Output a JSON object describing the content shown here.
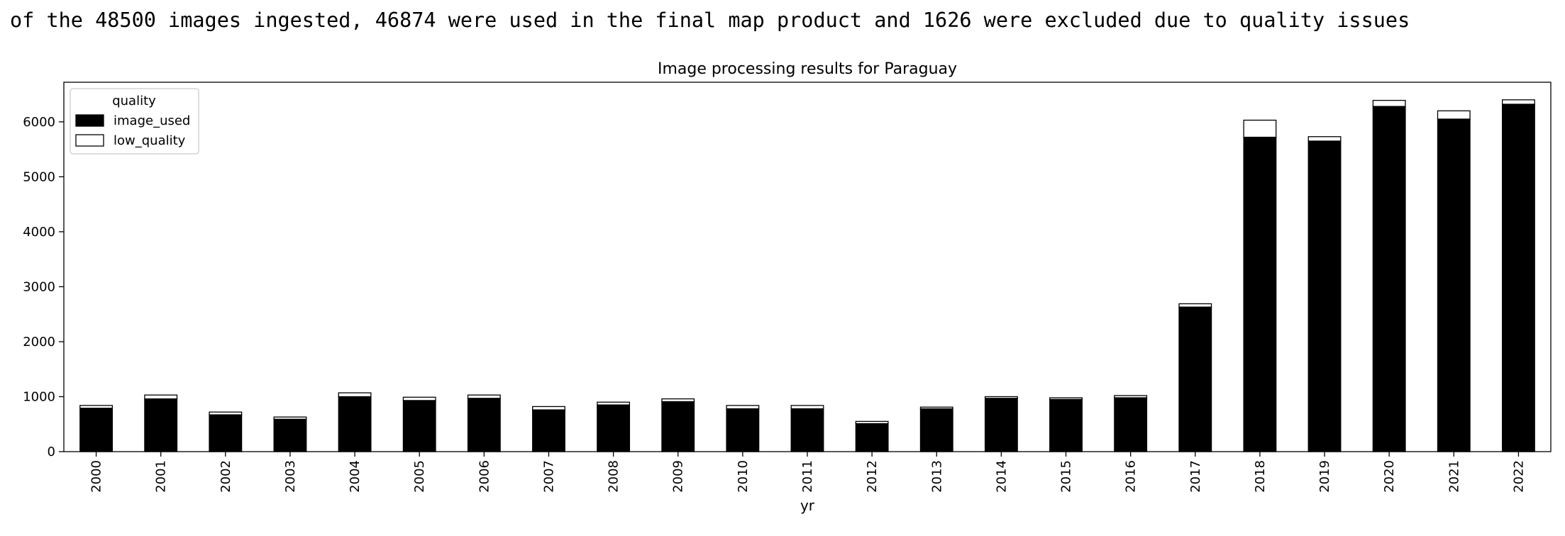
{
  "summary": "of the 48500 images ingested, 46874 were used in the final map product and 1626 were excluded due to quality issues",
  "chart_data": {
    "type": "bar",
    "stacked": true,
    "title": "Image processing results for Paraguay",
    "xlabel": "yr",
    "ylabel": "",
    "categories": [
      "2000",
      "2001",
      "2002",
      "2003",
      "2004",
      "2005",
      "2006",
      "2007",
      "2008",
      "2009",
      "2010",
      "2011",
      "2012",
      "2013",
      "2014",
      "2015",
      "2016",
      "2017",
      "2018",
      "2019",
      "2020",
      "2021",
      "2022"
    ],
    "series": [
      {
        "name": "image_used",
        "color": "#000000",
        "values": [
          790,
          960,
          670,
          590,
          1000,
          930,
          970,
          760,
          850,
          910,
          780,
          780,
          510,
          780,
          970,
          950,
          980,
          2630,
          5720,
          5650,
          6280,
          6050,
          6320
        ]
      },
      {
        "name": "low_quality",
        "color": "#ffffff",
        "values": [
          50,
          70,
          50,
          40,
          70,
          60,
          60,
          60,
          50,
          50,
          60,
          60,
          40,
          30,
          30,
          30,
          40,
          60,
          310,
          80,
          110,
          150,
          80
        ]
      }
    ],
    "ylim": [
      0,
      6720
    ],
    "yticks": [
      0,
      1000,
      2000,
      3000,
      4000,
      5000,
      6000
    ],
    "legend": {
      "title": "quality",
      "placement": "top-left"
    },
    "grid": false
  }
}
